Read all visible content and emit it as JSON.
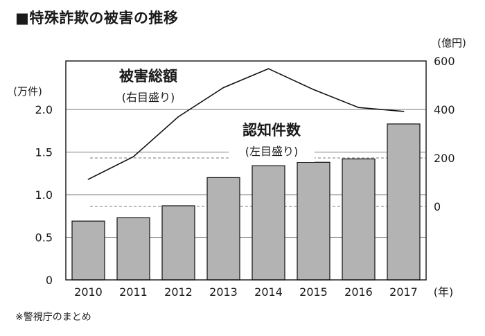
{
  "title": "■特殊詐欺の被害の推移",
  "source_note": "※警視庁のまとめ",
  "chart_data": {
    "type": "bar+line",
    "categories": [
      "2010",
      "2011",
      "2012",
      "2013",
      "2014",
      "2015",
      "2016",
      "2017"
    ],
    "x_unit": "(年)",
    "bar_series": {
      "name": "認知件数",
      "name_note": "(左目盛り)",
      "axis": "left",
      "unit": "(万件)",
      "values": [
        0.69,
        0.73,
        0.87,
        1.2,
        1.34,
        1.38,
        1.42,
        1.83
      ],
      "color": "#b3b3b3"
    },
    "line_series": {
      "name": "被害総額",
      "name_note": "(右目盛り)",
      "axis": "right",
      "unit": "(億円)",
      "values": [
        112,
        205,
        370,
        490,
        568,
        482,
        408,
        392
      ],
      "color": "#111111"
    },
    "left_axis": {
      "ticks": [
        "0",
        "0.5",
        "1.0",
        "1.5",
        "2.0"
      ],
      "ylim": [
        0,
        2.0
      ]
    },
    "right_axis": {
      "ticks": [
        "0",
        "200",
        "400",
        "600"
      ],
      "ylim": [
        0,
        600
      ]
    },
    "grid": true
  }
}
